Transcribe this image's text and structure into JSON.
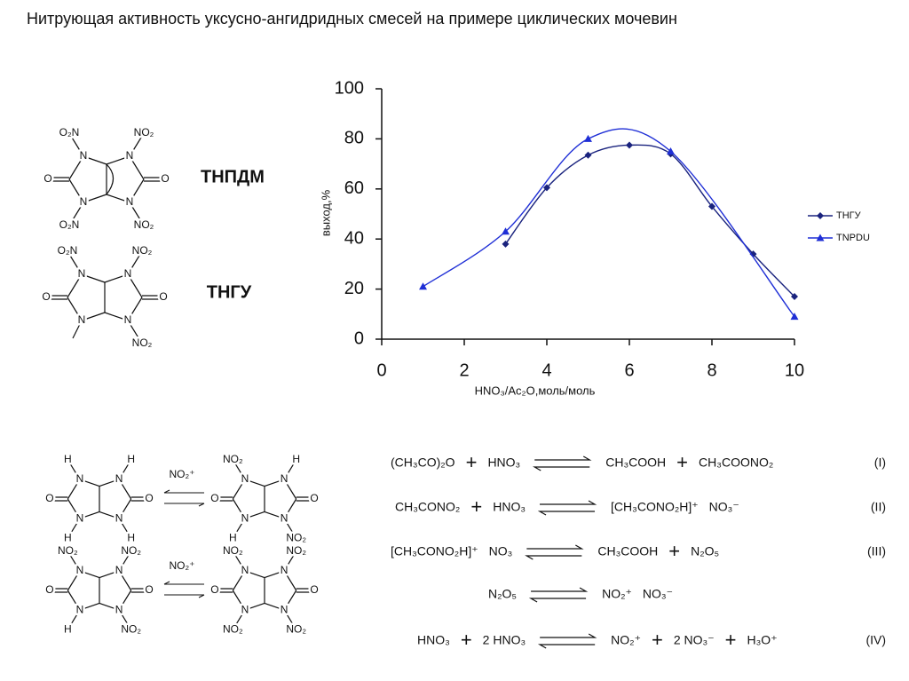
{
  "title": "Нитрующая активность уксусно-ангидридных смесей на примере циклических мочевин",
  "chart_data": {
    "type": "line",
    "xlabel": "HNO₃/Ac₂O,моль/моль",
    "ylabel": "выход,%",
    "xlim": [
      0,
      10
    ],
    "xticks": [
      0,
      2,
      4,
      6,
      8,
      10
    ],
    "ylim": [
      0,
      100
    ],
    "yticks": [
      0,
      20,
      40,
      60,
      80,
      100
    ],
    "grid": false,
    "legend": "right",
    "series": [
      {
        "name": "ТНГУ",
        "color": "#1a237e",
        "marker": "diamond",
        "x": [
          3,
          4,
          5,
          6,
          7,
          8,
          9,
          10
        ],
        "values": [
          38,
          60.5,
          73.5,
          77.5,
          74,
          53,
          34,
          17
        ]
      },
      {
        "name": "TNPDU",
        "color": "#1f2fd6",
        "marker": "triangle",
        "x": [
          1,
          3,
          5,
          7,
          10
        ],
        "values": [
          21,
          43,
          80,
          75,
          9
        ]
      }
    ]
  },
  "structures": [
    {
      "name": "ТНПДМ",
      "atoms": [
        "N",
        "N",
        "N",
        "N",
        "O",
        "O"
      ],
      "substituents": [
        "O₂N",
        "NO₂",
        "O₂N",
        "NO₂"
      ]
    },
    {
      "name": "ТНГУ",
      "atoms": [
        "N",
        "N",
        "N",
        "N",
        "O",
        "O"
      ],
      "substituents": [
        "O₂N",
        "NO₂",
        null,
        "NO₂"
      ]
    }
  ],
  "scheme": {
    "structures": [
      {
        "atoms": [
          "N",
          "N",
          "N",
          "N",
          "O",
          "O"
        ],
        "substituents": [
          "H",
          "H",
          "H",
          "H"
        ]
      },
      {
        "atoms": [
          "N",
          "N",
          "N",
          "N",
          "O",
          "O"
        ],
        "substituents": [
          "NO₂",
          "H",
          "H",
          "NO₂"
        ]
      },
      {
        "atoms": [
          "N",
          "N",
          "N",
          "N",
          "O",
          "O"
        ],
        "substituents": [
          "NO₂",
          "NO₂",
          "H",
          "NO₂"
        ]
      },
      {
        "atoms": [
          "N",
          "N",
          "N",
          "N",
          "O",
          "O"
        ],
        "substituents": [
          "NO₂",
          "NO₂",
          "NO₂",
          "NO₂"
        ]
      }
    ],
    "reagents": [
      "NO₂⁺",
      "NO₂⁺"
    ]
  },
  "equations": [
    {
      "left": [
        "(CH₃CO)₂O",
        "+",
        "HNO₃"
      ],
      "right": [
        "CH₃COOH",
        "+",
        "CH₃COONO₂"
      ],
      "label": "(I)"
    },
    {
      "left": [
        "CH₃CONO₂",
        "+",
        "HNO₃"
      ],
      "right": [
        "[CH₃CONO₂H]⁺",
        "NO₃⁻"
      ],
      "label": "(II)"
    },
    {
      "left": [
        "[CH₃CONO₂H]⁺",
        "NO₃"
      ],
      "right": [
        "CH₃COOH",
        "+",
        "N₂O₅"
      ],
      "label": "(III)"
    },
    {
      "left": [
        "N₂O₅"
      ],
      "right": [
        "NO₂⁺",
        "NO₃⁻"
      ]
    },
    {
      "left": [
        "HNO₃",
        "+",
        "2 HNO₃"
      ],
      "right": [
        "NO₂⁺",
        "+",
        "2 NO₃⁻",
        "+",
        "H₃O⁺"
      ],
      "label": "(IV)"
    }
  ]
}
